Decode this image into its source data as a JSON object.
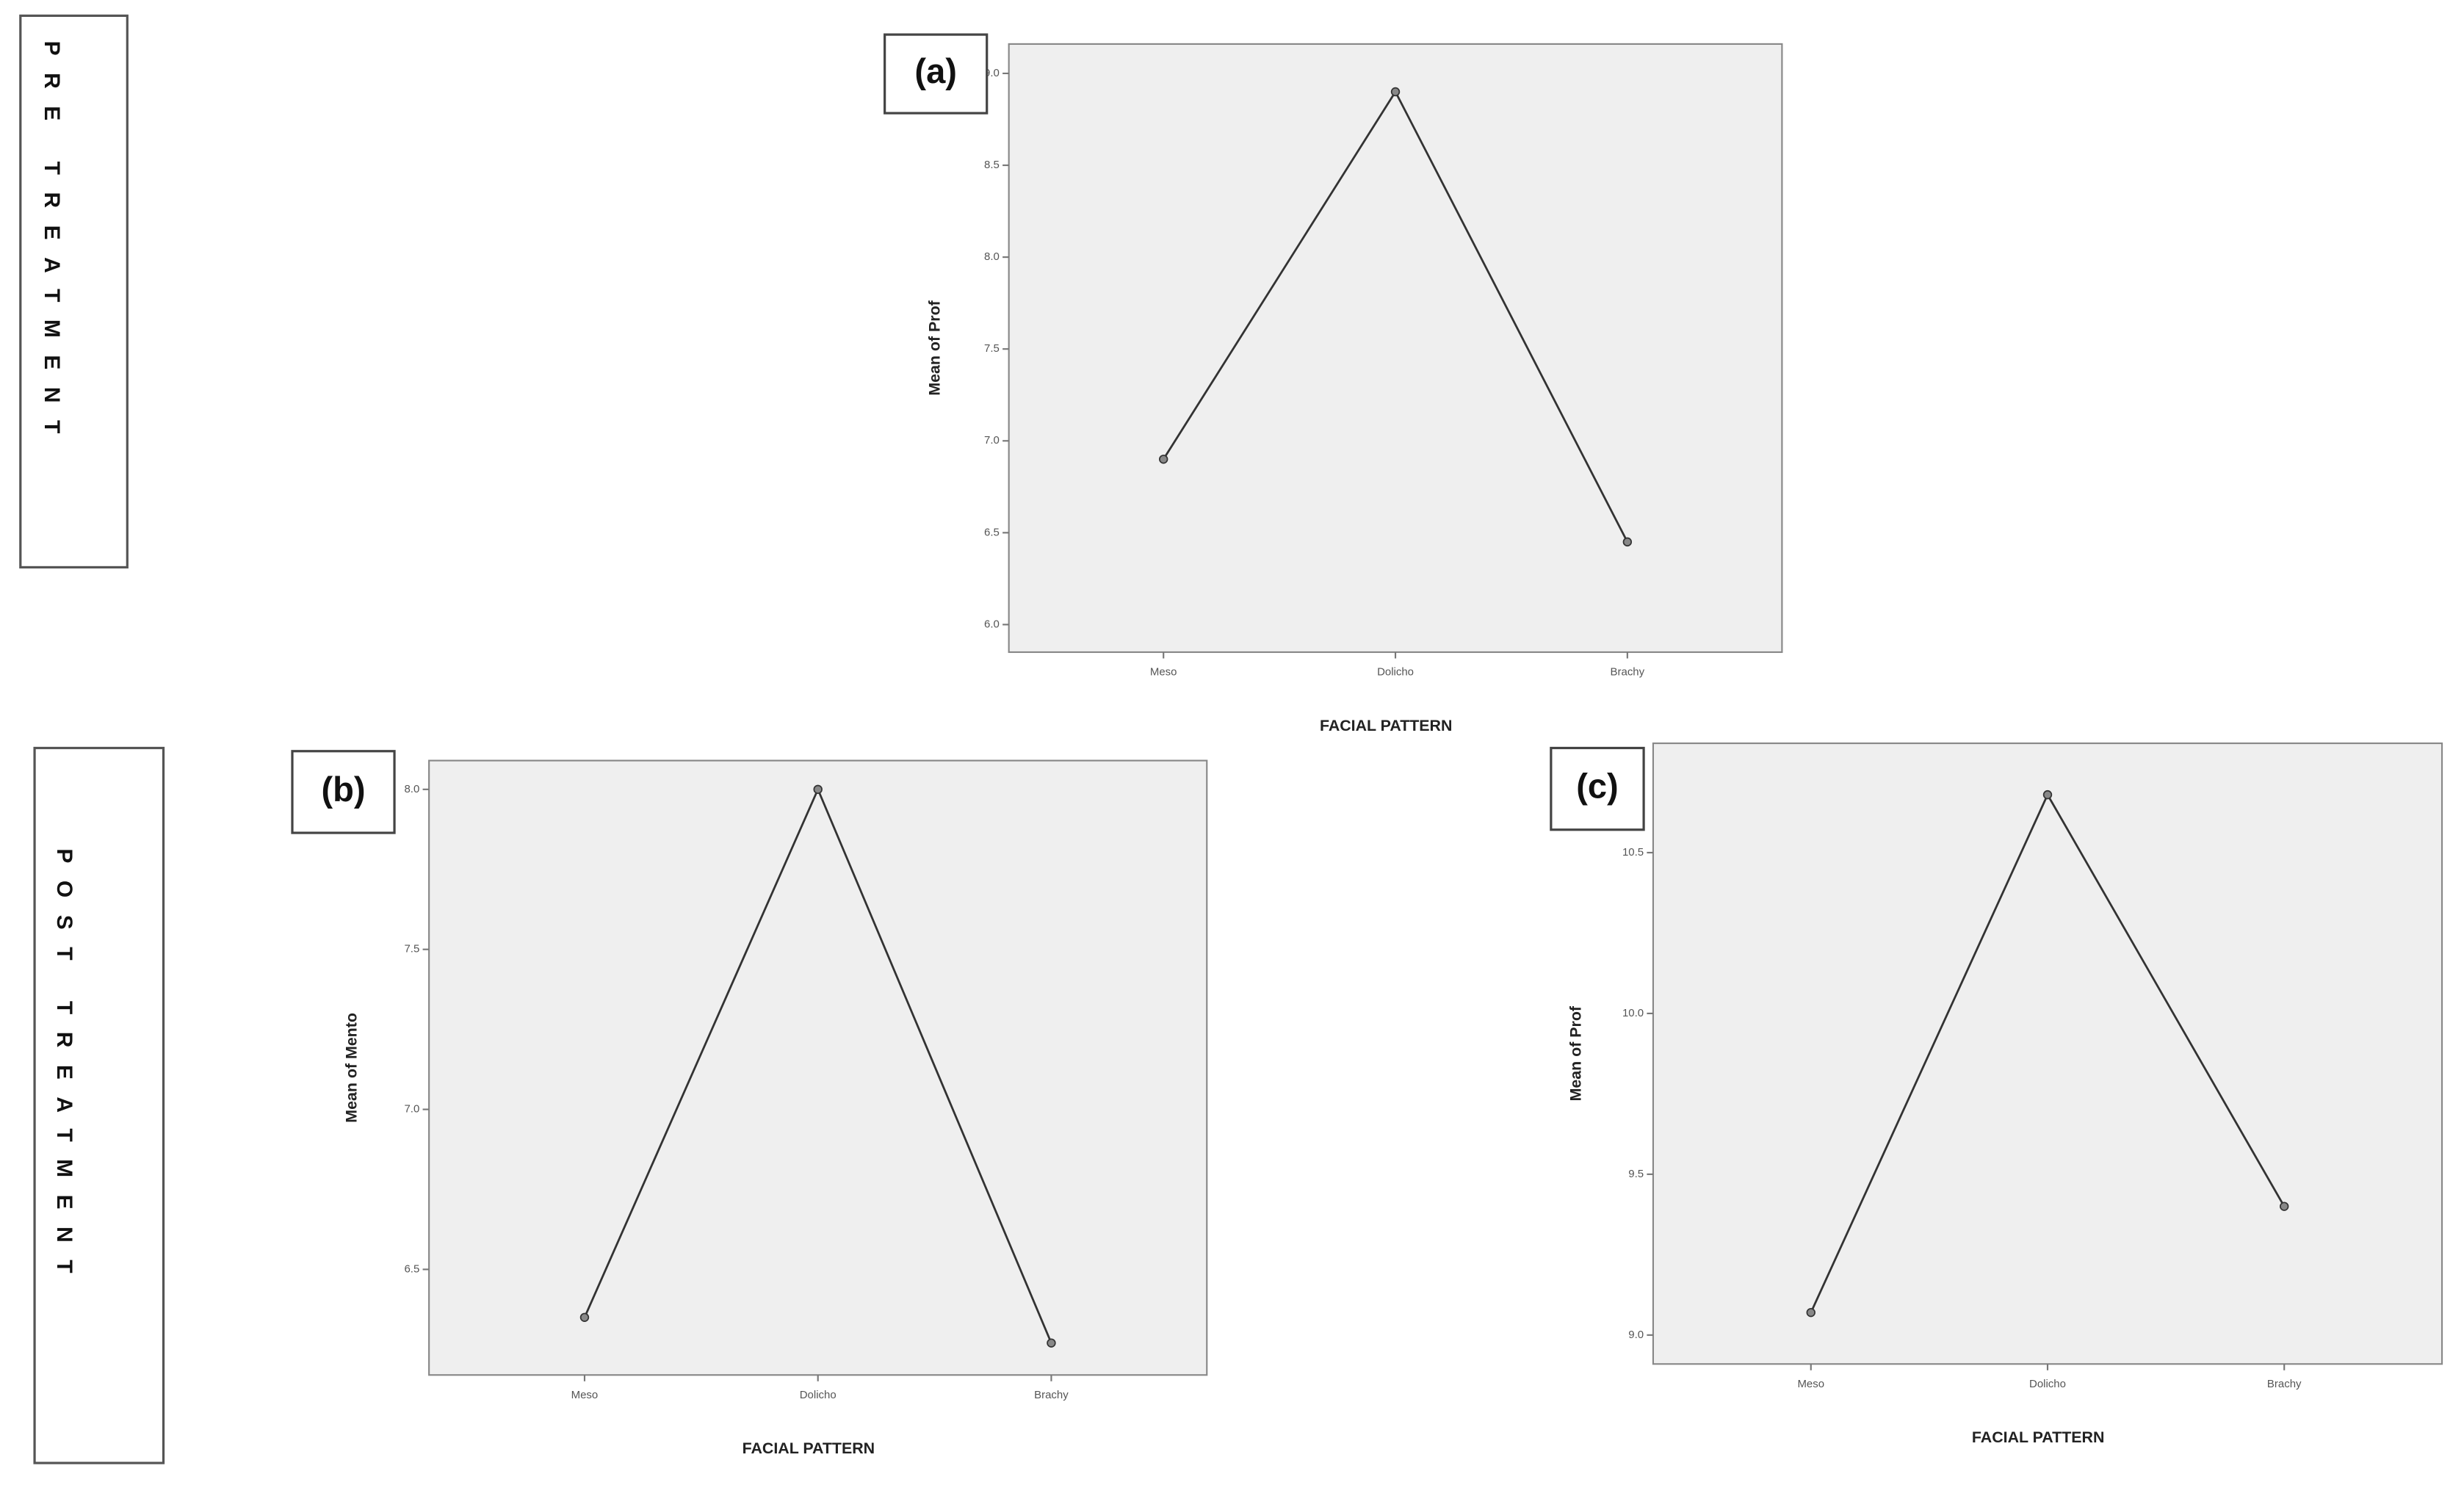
{
  "side_labels": [
    "PRE TREATMENT",
    "POST TREATMENT"
  ],
  "chart_data": [
    {
      "type": "line",
      "panel_label": "(a)",
      "x_label": "FACIAL PATTERN",
      "y_label": "Mean of Prof",
      "categories": [
        "Meso",
        "Dolicho",
        "Brachy"
      ],
      "values": [
        6.9,
        8.9,
        6.45
      ],
      "color": "#333333",
      "ylim": [
        5.85,
        9.16
      ],
      "yticks": [
        {
          "value": 6,
          "label": "6.0"
        },
        6.5,
        {
          "value": 7,
          "label": "7.0"
        },
        7.5,
        {
          "value": 8,
          "label": "8.0"
        },
        8.5,
        {
          "value": 9,
          "label": "9.0"
        }
      ]
    },
    {
      "type": "line",
      "panel_label": "(b)",
      "x_label": "FACIAL PATTERN",
      "y_label": "Mean of Mento",
      "categories": [
        "Meso",
        "Dolicho",
        "Brachy"
      ],
      "values": [
        6.35,
        8.0,
        6.27
      ],
      "color": "#333333",
      "ylim": [
        6.17,
        8.09
      ],
      "yticks": [
        6.5,
        {
          "value": 7,
          "label": "7.0"
        },
        7.5,
        {
          "value": 8,
          "label": "8.0"
        }
      ]
    },
    {
      "type": "line",
      "panel_label": "(c)",
      "x_label": "FACIAL PATTERN",
      "y_label": "Mean of Prof",
      "categories": [
        "Meso",
        "Dolicho",
        "Brachy"
      ],
      "values": [
        9.07,
        10.68,
        9.4
      ],
      "color": "#333333",
      "ylim": [
        8.91,
        10.84
      ],
      "yticks": [
        {
          "value": 9,
          "label": "9.0"
        },
        9.5,
        {
          "value": 10,
          "label": "10.0"
        },
        10.5
      ]
    }
  ]
}
